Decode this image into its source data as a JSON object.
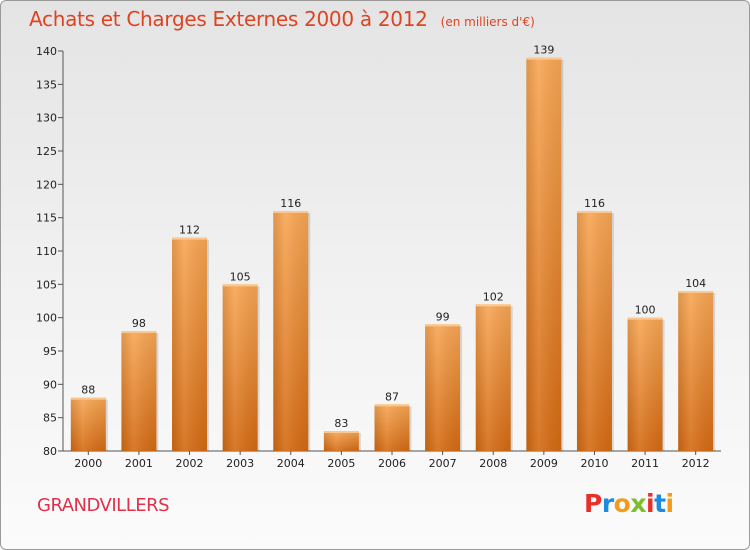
{
  "header": {
    "title": "Achats et Charges Externes 2000 à 2012",
    "unit": "(en milliers d'€)"
  },
  "footer": {
    "town": "GRANDVILLERS",
    "logo_letters": [
      "P",
      "r",
      "o",
      "x",
      "i",
      "t",
      "i"
    ],
    "logo_colors": [
      "#e8302a",
      "#1b8de0",
      "#f49c1a",
      "#7bbd2a",
      "#e8302a",
      "#1b8de0",
      "#f49c1a"
    ]
  },
  "colors": {
    "bar_light": "#f7a654",
    "bar_dark": "#d46a12",
    "title": "#dd4422"
  },
  "chart_data": {
    "type": "bar",
    "categories": [
      "2000",
      "2001",
      "2002",
      "2003",
      "2004",
      "2005",
      "2006",
      "2007",
      "2008",
      "2009",
      "2010",
      "2011",
      "2012"
    ],
    "values": [
      88,
      98,
      112,
      105,
      116,
      83,
      87,
      99,
      102,
      139,
      116,
      100,
      104
    ],
    "ylim": [
      80,
      140
    ],
    "yticks": [
      80,
      85,
      90,
      95,
      100,
      105,
      110,
      115,
      120,
      125,
      130,
      135,
      140
    ],
    "grid": false,
    "legend": "none",
    "data_labels": true
  }
}
